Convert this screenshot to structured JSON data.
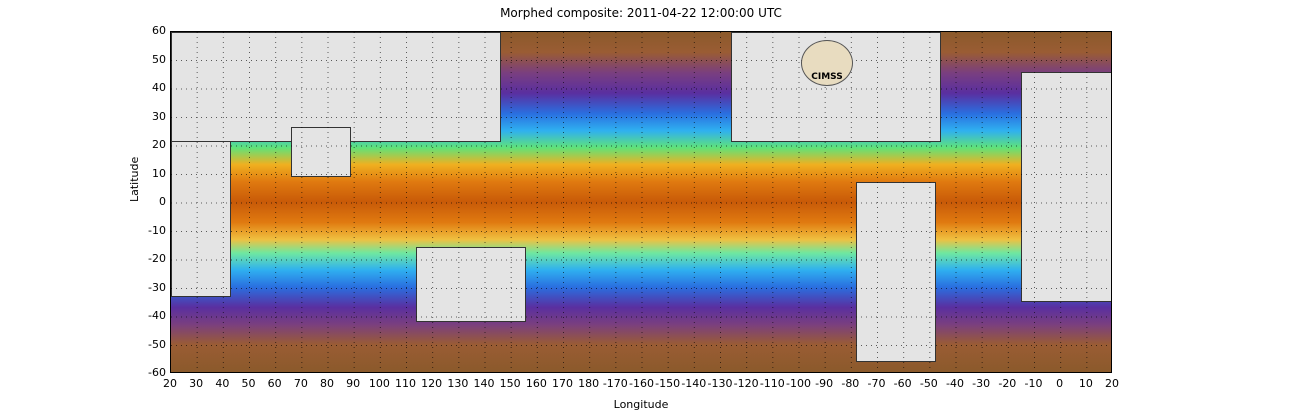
{
  "title": "Morphed composite: 2011-04-22 12:00:00 UTC",
  "xlabel": "Longitude",
  "ylabel": "Latitude",
  "logo_text": "CIMSS",
  "y_ticks": [
    "60",
    "50",
    "40",
    "30",
    "20",
    "10",
    "0",
    "-10",
    "-20",
    "-30",
    "-40",
    "-50",
    "-60"
  ],
  "x_ticks": [
    "20",
    "30",
    "40",
    "50",
    "60",
    "70",
    "80",
    "90",
    "100",
    "110",
    "120",
    "130",
    "140",
    "150",
    "160",
    "170",
    "180",
    "-170",
    "-160",
    "-150",
    "-140",
    "-130",
    "-120",
    "-110",
    "-100",
    "-90",
    "-80",
    "-70",
    "-60",
    "-50",
    "-40",
    "-30",
    "-20",
    "-10",
    "0",
    "10",
    "20"
  ],
  "colors": {
    "dry": "#8b5a2b",
    "moist": "#2fb0f0",
    "wet": "#c85a08",
    "land": "#e4e4e4"
  }
}
